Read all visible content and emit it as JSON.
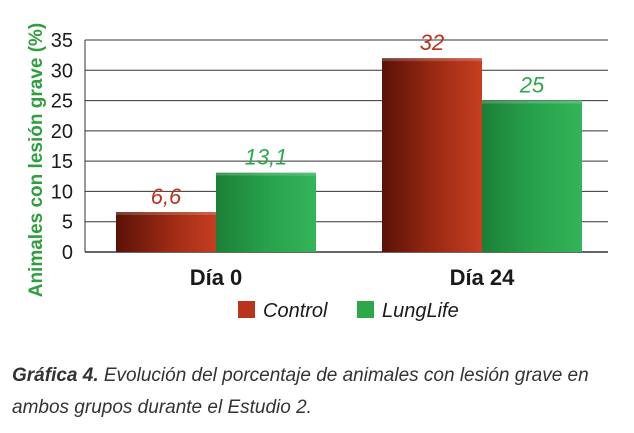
{
  "chart_data": {
    "type": "bar",
    "categories": [
      "Día 0",
      "Día 24"
    ],
    "series": [
      {
        "name": "Control",
        "values": [
          6.6,
          32
        ],
        "labels": [
          "6,6",
          "32"
        ]
      },
      {
        "name": "LungLife",
        "values": [
          13.1,
          25
        ],
        "labels": [
          "13,1",
          "25"
        ]
      }
    ],
    "ylabel": "Animales con lesión grave (%)",
    "ylim": [
      0,
      35
    ],
    "yticks": [
      0,
      5,
      10,
      15,
      20,
      25,
      30,
      35
    ],
    "grid": true,
    "legend": "bottom"
  },
  "colors": {
    "Control": "#b8341c",
    "LungLife": "#2ea64a",
    "ylabel": "#2e9e3e"
  },
  "caption": {
    "bold": "Gráfica 4.",
    "text": " Evolución del porcentaje de animales con lesión grave en ambos grupos durante el Estudio 2."
  }
}
